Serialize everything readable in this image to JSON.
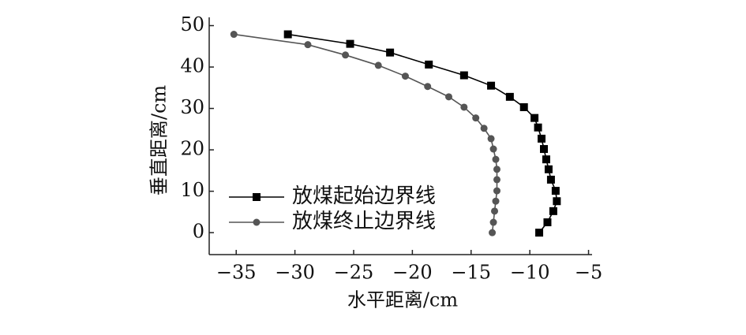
{
  "chart_data": {
    "type": "line",
    "xlabel": "水平距离/cm",
    "ylabel": "垂直距离/cm",
    "xlim": [
      -37.3,
      -4.7
    ],
    "ylim": [
      -5.3,
      52
    ],
    "xticks": [
      {
        "value": -35,
        "label": "−35"
      },
      {
        "value": -30,
        "label": "−30"
      },
      {
        "value": -25,
        "label": "−25"
      },
      {
        "value": -20,
        "label": "−20"
      },
      {
        "value": -15,
        "label": "−15"
      },
      {
        "value": -10,
        "label": "−10"
      },
      {
        "value": -5,
        "label": "−5"
      }
    ],
    "yticks": [
      0,
      10,
      20,
      30,
      40,
      50
    ],
    "legend": "left",
    "series": [
      {
        "name": "放煤起始边界线",
        "color": "#000000",
        "marker": "square",
        "x": [
          -30.6,
          -25.3,
          -21.9,
          -18.6,
          -15.6,
          -13.3,
          -11.7,
          -10.5,
          -9.6,
          -9.3,
          -9.0,
          -8.8,
          -8.6,
          -8.4,
          -8.2,
          -7.8,
          -7.7,
          -8.0,
          -8.5,
          -9.2
        ],
        "values": [
          47.9,
          45.6,
          43.5,
          40.6,
          38.0,
          35.5,
          32.8,
          30.3,
          27.7,
          25.4,
          22.7,
          20.2,
          17.7,
          15.3,
          12.8,
          10.1,
          7.6,
          5.2,
          2.5,
          0
        ]
      },
      {
        "name": "放煤终止边界线",
        "color": "#555555",
        "marker": "circle",
        "x": [
          -35.2,
          -28.9,
          -25.7,
          -22.9,
          -20.6,
          -18.7,
          -16.9,
          -15.6,
          -14.6,
          -13.9,
          -13.3,
          -13.1,
          -12.9,
          -12.8,
          -12.8,
          -12.8,
          -12.9,
          -13.0,
          -13.1,
          -13.2
        ],
        "values": [
          47.9,
          45.4,
          42.9,
          40.4,
          37.8,
          35.3,
          32.8,
          30.3,
          27.7,
          25.2,
          22.7,
          20.2,
          17.7,
          15.3,
          12.8,
          10.1,
          7.6,
          5.2,
          2.5,
          0
        ]
      }
    ]
  }
}
